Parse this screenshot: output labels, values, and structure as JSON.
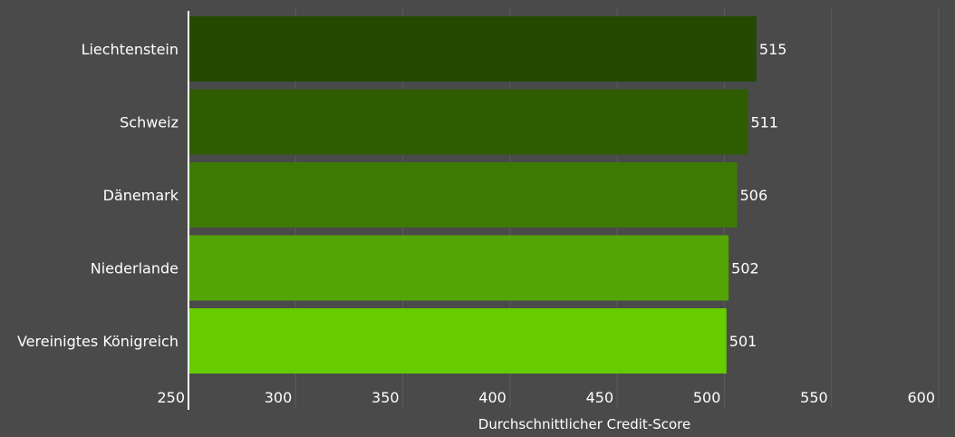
{
  "chart_data": {
    "type": "bar",
    "orientation": "horizontal",
    "categories": [
      "Liechtenstein",
      "Schweiz",
      "Dänemark",
      "Niederlande",
      "Vereinigtes Königreich"
    ],
    "values": [
      515,
      511,
      506,
      502,
      501
    ],
    "data_labels": [
      "515",
      "511",
      "506",
      "502",
      "501"
    ],
    "bar_colors": [
      "#234a00",
      "#2f5c00",
      "#3d7a04",
      "#52a504",
      "#66cc00"
    ],
    "xlabel": "Durchschnittlicher Credit-Score",
    "xlim": [
      250,
      600
    ],
    "xticks": [
      250,
      300,
      350,
      400,
      450,
      500,
      550,
      600
    ],
    "xtick_labels": [
      "250",
      "300",
      "350",
      "400",
      "450",
      "500",
      "550",
      "600"
    ],
    "grid": "vertical",
    "legend": "none"
  },
  "colors": {
    "background": "#4a4a4a",
    "gridline": "#5c5c5c",
    "axis_line": "#ffffff",
    "text": "#ffffff"
  }
}
